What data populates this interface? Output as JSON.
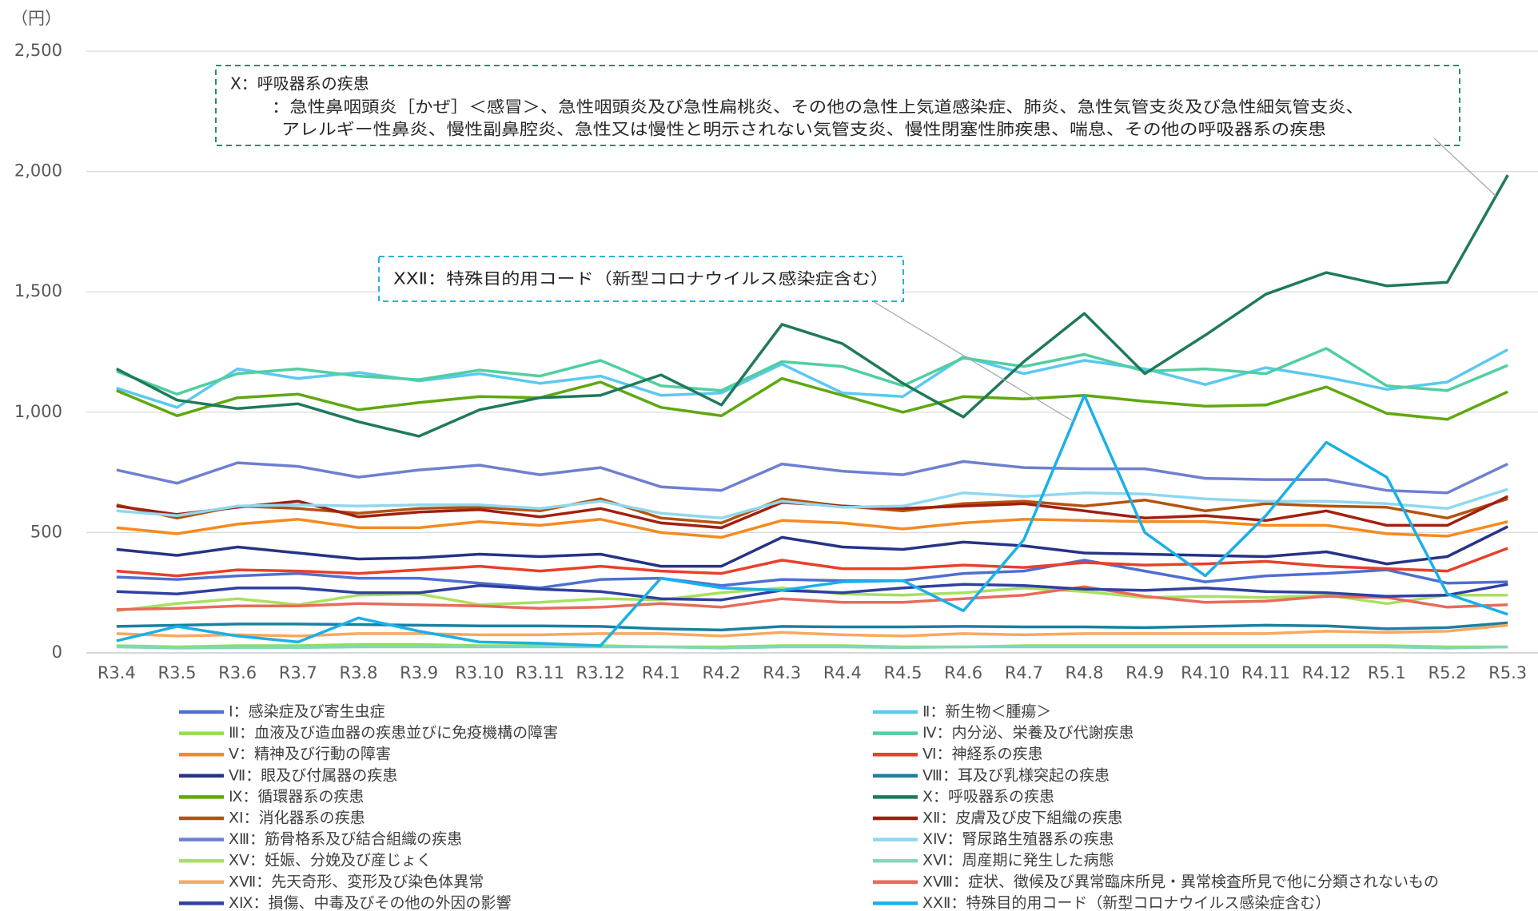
{
  "chart_data": {
    "type": "line",
    "y_label": "（円）",
    "categories": [
      "R3.4",
      "R3.5",
      "R3.6",
      "R3.7",
      "R3.8",
      "R3.9",
      "R3.10",
      "R3.11",
      "R3.12",
      "R4.1",
      "R4.2",
      "R4.3",
      "R4.4",
      "R4.5",
      "R4.6",
      "R4.7",
      "R4.8",
      "R4.9",
      "R4.10",
      "R4.11",
      "R4.12",
      "R5.1",
      "R5.2",
      "R5.3"
    ],
    "ylim": [
      0,
      2500
    ],
    "yticks": [
      0,
      500,
      {
        "value": 1000,
        "label": "1,000"
      },
      {
        "value": 1500,
        "label": "1,500"
      },
      {
        "value": 2000,
        "label": "2,000"
      },
      {
        "value": 2500,
        "label": "2,500"
      }
    ],
    "grid": true,
    "series": [
      {
        "name": "Ⅰ：感染症及び寄生虫症",
        "color": "#4f6fd0",
        "values": [
          315,
          305,
          320,
          330,
          310,
          310,
          290,
          270,
          305,
          310,
          280,
          305,
          300,
          300,
          330,
          340,
          385,
          340,
          295,
          320,
          330,
          345,
          290,
          295
        ]
      },
      {
        "name": "Ⅱ：新生物＜腫瘍＞",
        "color": "#5bc8f0",
        "values": [
          1100,
          1020,
          1180,
          1140,
          1165,
          1130,
          1160,
          1120,
          1150,
          1070,
          1080,
          1200,
          1080,
          1065,
          1230,
          1160,
          1215,
          1180,
          1115,
          1185,
          1145,
          1095,
          1125,
          1260
        ]
      },
      {
        "name": "Ⅲ：血液及び造血器の疾患並びに免疫機構の障害",
        "color": "#90e050",
        "values": [
          30,
          25,
          30,
          30,
          35,
          35,
          30,
          30,
          30,
          25,
          25,
          30,
          30,
          25,
          25,
          30,
          30,
          30,
          30,
          30,
          30,
          30,
          25,
          25
        ]
      },
      {
        "name": "Ⅳ：内分泌、栄養及び代謝疾患",
        "color": "#4fcfa0",
        "values": [
          1170,
          1075,
          1160,
          1180,
          1150,
          1135,
          1175,
          1150,
          1215,
          1110,
          1090,
          1210,
          1190,
          1110,
          1225,
          1190,
          1240,
          1170,
          1180,
          1160,
          1265,
          1110,
          1090,
          1195
        ]
      },
      {
        "name": "Ⅴ：精神及び行動の障害",
        "color": "#f58a1f",
        "values": [
          520,
          495,
          535,
          555,
          520,
          520,
          545,
          530,
          555,
          500,
          480,
          550,
          540,
          515,
          540,
          555,
          550,
          545,
          545,
          530,
          530,
          495,
          485,
          545
        ]
      },
      {
        "name": "Ⅵ：神経系の疾患",
        "color": "#e8402a",
        "values": [
          340,
          320,
          345,
          340,
          330,
          345,
          360,
          340,
          360,
          340,
          330,
          385,
          350,
          350,
          365,
          355,
          375,
          365,
          370,
          380,
          360,
          350,
          340,
          435
        ]
      },
      {
        "name": "Ⅶ：眼及び付属器の疾患",
        "color": "#263385",
        "values": [
          430,
          405,
          440,
          415,
          390,
          395,
          410,
          400,
          410,
          360,
          360,
          480,
          440,
          430,
          460,
          445,
          415,
          410,
          405,
          400,
          420,
          370,
          400,
          525
        ]
      },
      {
        "name": "Ⅷ：耳及び乳様突起の疾患",
        "color": "#1a80a0",
        "values": [
          110,
          115,
          120,
          120,
          118,
          115,
          112,
          112,
          110,
          100,
          95,
          110,
          108,
          108,
          110,
          108,
          108,
          105,
          110,
          115,
          112,
          100,
          105,
          125
        ]
      },
      {
        "name": "Ⅸ：循環器系の疾患",
        "color": "#5fa80f",
        "values": [
          1090,
          985,
          1060,
          1075,
          1010,
          1040,
          1065,
          1060,
          1125,
          1020,
          985,
          1140,
          1070,
          1000,
          1065,
          1055,
          1070,
          1045,
          1025,
          1030,
          1105,
          995,
          970,
          1085
        ]
      },
      {
        "name": "Ⅹ：呼吸器系の疾患",
        "color": "#1f7a5a",
        "values": [
          1180,
          1050,
          1015,
          1035,
          960,
          900,
          1010,
          1060,
          1070,
          1155,
          1030,
          1365,
          1285,
          1120,
          980,
          1210,
          1410,
          1160,
          1320,
          1490,
          1580,
          1525,
          1540,
          1985
        ]
      },
      {
        "name": "ⅩⅠ：消化器系の疾患",
        "color": "#b5520f",
        "values": [
          615,
          560,
          610,
          600,
          580,
          600,
          605,
          590,
          640,
          560,
          540,
          640,
          610,
          590,
          620,
          630,
          610,
          635,
          590,
          620,
          610,
          605,
          560,
          640
        ]
      },
      {
        "name": "ⅩⅡ：皮膚及び皮下組織の疾患",
        "color": "#a0200f",
        "values": [
          610,
          575,
          605,
          630,
          565,
          585,
          595,
          565,
          600,
          540,
          520,
          625,
          610,
          600,
          610,
          620,
          590,
          560,
          570,
          550,
          590,
          530,
          530,
          650
        ]
      },
      {
        "name": "ⅩⅢ：筋骨格系及び結合組織の疾患",
        "color": "#6f7fd0",
        "values": [
          760,
          705,
          790,
          775,
          730,
          760,
          780,
          740,
          770,
          690,
          675,
          785,
          755,
          740,
          795,
          770,
          765,
          765,
          725,
          720,
          720,
          675,
          665,
          785
        ]
      },
      {
        "name": "ⅩⅣ：腎尿路生殖器系の疾患",
        "color": "#8fd8f0",
        "values": [
          590,
          570,
          610,
          615,
          610,
          615,
          615,
          600,
          630,
          580,
          560,
          630,
          605,
          610,
          665,
          650,
          665,
          660,
          640,
          630,
          630,
          620,
          600,
          680
        ]
      },
      {
        "name": "ⅩⅤ：妊娠、分娩及び産じょく",
        "color": "#a8e060",
        "values": [
          175,
          205,
          225,
          200,
          240,
          245,
          200,
          210,
          225,
          220,
          250,
          270,
          245,
          240,
          250,
          270,
          255,
          230,
          235,
          230,
          240,
          205,
          240,
          240
        ]
      },
      {
        "name": "ⅩⅥ：周産期に発生した病態",
        "color": "#80d8b8",
        "values": [
          25,
          20,
          22,
          22,
          25,
          25,
          25,
          25,
          25,
          25,
          20,
          25,
          25,
          22,
          25,
          25,
          25,
          25,
          25,
          25,
          25,
          25,
          20,
          25
        ]
      },
      {
        "name": "ⅩⅦ：先天奇形、変形及び染色体異常",
        "color": "#f8a860",
        "values": [
          80,
          70,
          75,
          70,
          80,
          80,
          75,
          75,
          80,
          80,
          70,
          85,
          75,
          70,
          80,
          75,
          80,
          80,
          80,
          80,
          90,
          85,
          90,
          115
        ]
      },
      {
        "name": "ⅩⅧ：症状、徴候及び異常臨床所見・異常検査所見で他に分類されないもの",
        "color": "#e86a5a",
        "values": [
          180,
          185,
          195,
          195,
          205,
          200,
          195,
          185,
          190,
          205,
          190,
          225,
          210,
          210,
          225,
          240,
          275,
          235,
          210,
          215,
          235,
          230,
          190,
          200
        ]
      },
      {
        "name": "ⅩⅨ：損傷、中毒及びその他の外因の影響",
        "color": "#3040a0",
        "values": [
          255,
          245,
          270,
          270,
          250,
          250,
          280,
          265,
          255,
          225,
          220,
          260,
          250,
          270,
          285,
          280,
          265,
          260,
          270,
          255,
          250,
          235,
          240,
          285
        ]
      },
      {
        "name": "ⅩⅩⅡ：特殊目的用コード（新型コロナウイルス感染症含む）",
        "color": "#1ab0e8",
        "values": [
          50,
          110,
          70,
          45,
          145,
          90,
          45,
          40,
          30,
          310,
          270,
          260,
          295,
          300,
          175,
          470,
          1070,
          500,
          320,
          570,
          875,
          730,
          245,
          160
        ]
      }
    ],
    "annotations": [
      {
        "lines": [
          "Ⅹ：呼吸器系の疾患",
          "：急性鼻咽頭炎［かぜ］＜感冒＞、急性咽頭炎及び急性扁桃炎、その他の急性上気道感染症、肺炎、急性気管支炎及び急性細気管支炎、",
          "アレルギー性鼻炎、慢性副鼻腔炎、急性又は慢性と明示されない気管支炎、慢性閉塞性肺疾患、喘息、その他の呼吸器系の疾患"
        ]
      },
      {
        "lines": [
          "ⅩⅩⅡ：特殊目的用コード（新型コロナウイルス感染症含む）"
        ]
      }
    ]
  }
}
